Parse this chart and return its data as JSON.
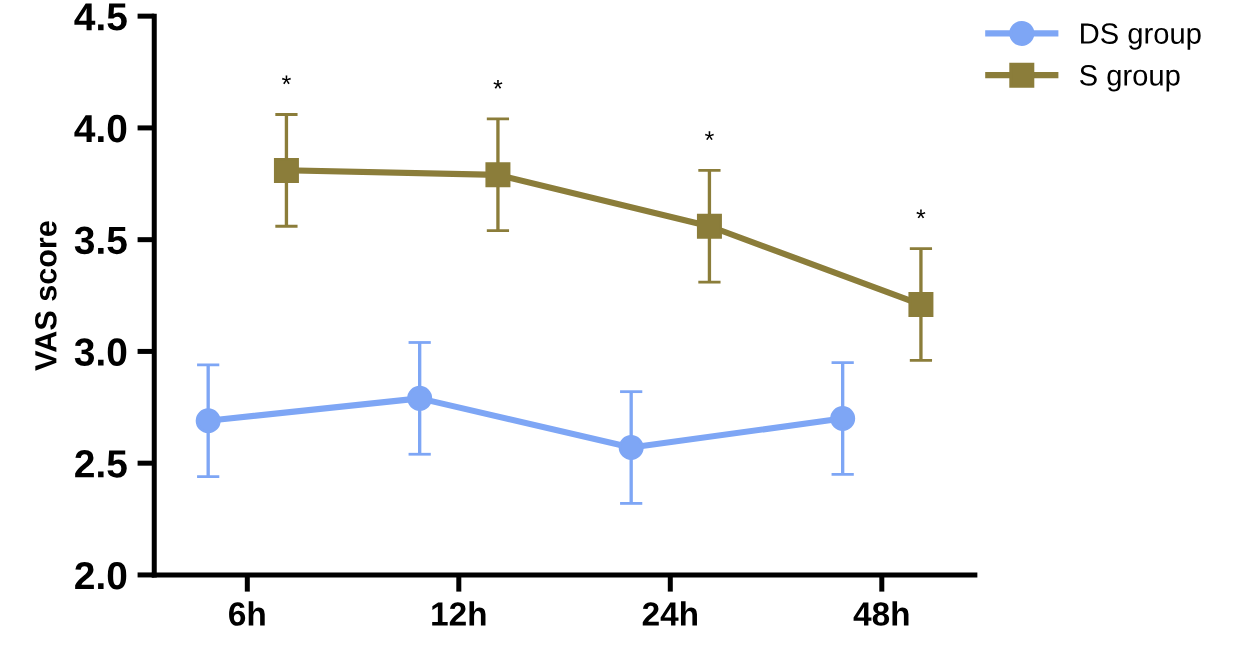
{
  "chart_data": {
    "type": "line",
    "ylabel": "VAS score",
    "categories": [
      "6h",
      "12h",
      "24h",
      "48h"
    ],
    "series": [
      {
        "name": "DS group",
        "color": "#7ea6f5",
        "marker": "circle",
        "values": [
          2.69,
          2.79,
          2.57,
          2.7
        ],
        "errors": [
          0.25,
          0.25,
          0.25,
          0.25
        ]
      },
      {
        "name": "S group",
        "color": "#8b7d3a",
        "marker": "square",
        "values": [
          3.81,
          3.79,
          3.56,
          3.21
        ],
        "errors": [
          0.25,
          0.25,
          0.25,
          0.25
        ]
      }
    ],
    "ylim": [
      2.0,
      4.5
    ],
    "yticks": [
      {
        "value": 2.0,
        "label": "2.0"
      },
      {
        "value": 2.5,
        "label": "2.5"
      },
      {
        "value": 3.0,
        "label": "3.0"
      },
      {
        "value": 3.5,
        "label": "3.5"
      },
      {
        "value": 4.0,
        "label": "4.0"
      },
      {
        "value": 4.5,
        "label": "4.5"
      }
    ],
    "annotations": [
      "*",
      "*",
      "*",
      "*"
    ],
    "grid": false,
    "legend": "top right",
    "line_style": "solid"
  }
}
